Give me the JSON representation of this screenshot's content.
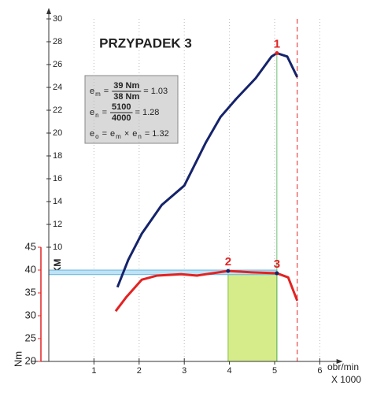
{
  "chart_data": {
    "type": "line",
    "title": "PRZYPADEK 3",
    "xlim": [
      0,
      6.3
    ],
    "xticks": [
      1,
      2,
      3,
      4,
      5,
      6
    ],
    "xlabel": "obr/min",
    "xlabel_unit": "X 1000",
    "ylim": [
      0,
      30
    ],
    "yticks": [
      10,
      12,
      14,
      16,
      18,
      20,
      22,
      24,
      26,
      28,
      30
    ],
    "ylabel": "KM",
    "y2lim": [
      20,
      45
    ],
    "y2ticks": [
      20,
      25,
      30,
      35,
      40,
      45
    ],
    "y2label": "Nm",
    "grid": true,
    "series": [
      {
        "color": "#15236b",
        "x": [
          1.52,
          1.76,
          2.06,
          2.5,
          3.0,
          3.48,
          3.8,
          4.15,
          4.58,
          4.93,
          5.05,
          5.28,
          5.5
        ],
        "values": [
          6.5,
          8.9,
          11.2,
          13.7,
          15.4,
          19.2,
          21.4,
          23.0,
          24.8,
          26.7,
          27.0,
          26.7,
          24.9
        ]
      },
      {
        "color": "#e32222",
        "axis": "y2",
        "x": [
          1.48,
          1.71,
          2.06,
          2.4,
          2.93,
          3.28,
          3.97,
          4.5,
          5.05,
          5.3,
          5.5
        ],
        "values": [
          31.0,
          34.0,
          37.9,
          38.8,
          39.1,
          38.8,
          39.8,
          39.5,
          39.3,
          38.4,
          33.3
        ]
      }
    ],
    "annotations": [
      {
        "label": "1",
        "x": 5.05,
        "y": 27.0
      },
      {
        "label": "2",
        "x": 3.97,
        "y": 39.8,
        "axis": "y2"
      },
      {
        "label": "3",
        "x": 5.05,
        "y": 39.3,
        "axis": "y2"
      }
    ],
    "vline": 5.5,
    "shaded_x": [
      3.97,
      5.05
    ],
    "shaded_top": 39.3,
    "band_y2": [
      39,
      40
    ],
    "formulas": [
      [
        {
          "text": "e",
          "sub": "m"
        },
        {
          "text": "="
        },
        {
          "num": "39 Nm",
          "den": "38 Nm"
        },
        {
          "text": "= 1.03"
        }
      ],
      [
        {
          "text": "e",
          "sub": "n"
        },
        {
          "text": "="
        },
        {
          "num": "5100",
          "den": "4000"
        },
        {
          "text": "= 1.28"
        }
      ],
      [
        {
          "text": "e",
          "sub": "o"
        },
        {
          "text": "="
        },
        {
          "text": "e",
          "sub": "m"
        },
        {
          "text": "×"
        },
        {
          "text": "e",
          "sub": "n"
        },
        {
          "text": "= 1.32"
        }
      ]
    ]
  }
}
